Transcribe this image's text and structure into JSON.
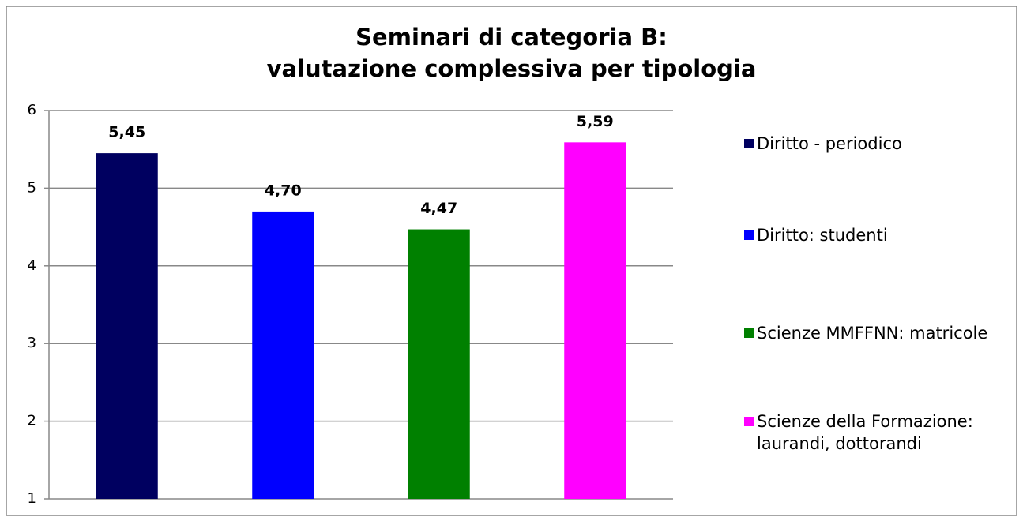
{
  "chart_data": {
    "type": "bar",
    "title": [
      "Seminari di categoria B:",
      "valutazione complessiva per tipologia"
    ],
    "series": [
      {
        "name": "Diritto - periodico",
        "color": "#000060",
        "values": [
          5.45
        ],
        "value_labels": [
          "5,45"
        ]
      },
      {
        "name": "Diritto: studenti",
        "color": "#0000ff",
        "values": [
          4.7
        ],
        "value_labels": [
          "4,70"
        ]
      },
      {
        "name": "Scienze MMFFNN: matricole",
        "color": "#008000",
        "values": [
          4.47
        ],
        "value_labels": [
          "4,47"
        ]
      },
      {
        "name": "Scienze della Formazione: laurandi, dottorandi",
        "color": "#ff00ff",
        "values": [
          5.59
        ],
        "value_labels": [
          "5,59"
        ]
      }
    ],
    "ylim": [
      1,
      6
    ],
    "yticks": [
      1,
      2,
      3,
      4,
      5,
      6
    ],
    "grid": true,
    "legend": "right"
  }
}
